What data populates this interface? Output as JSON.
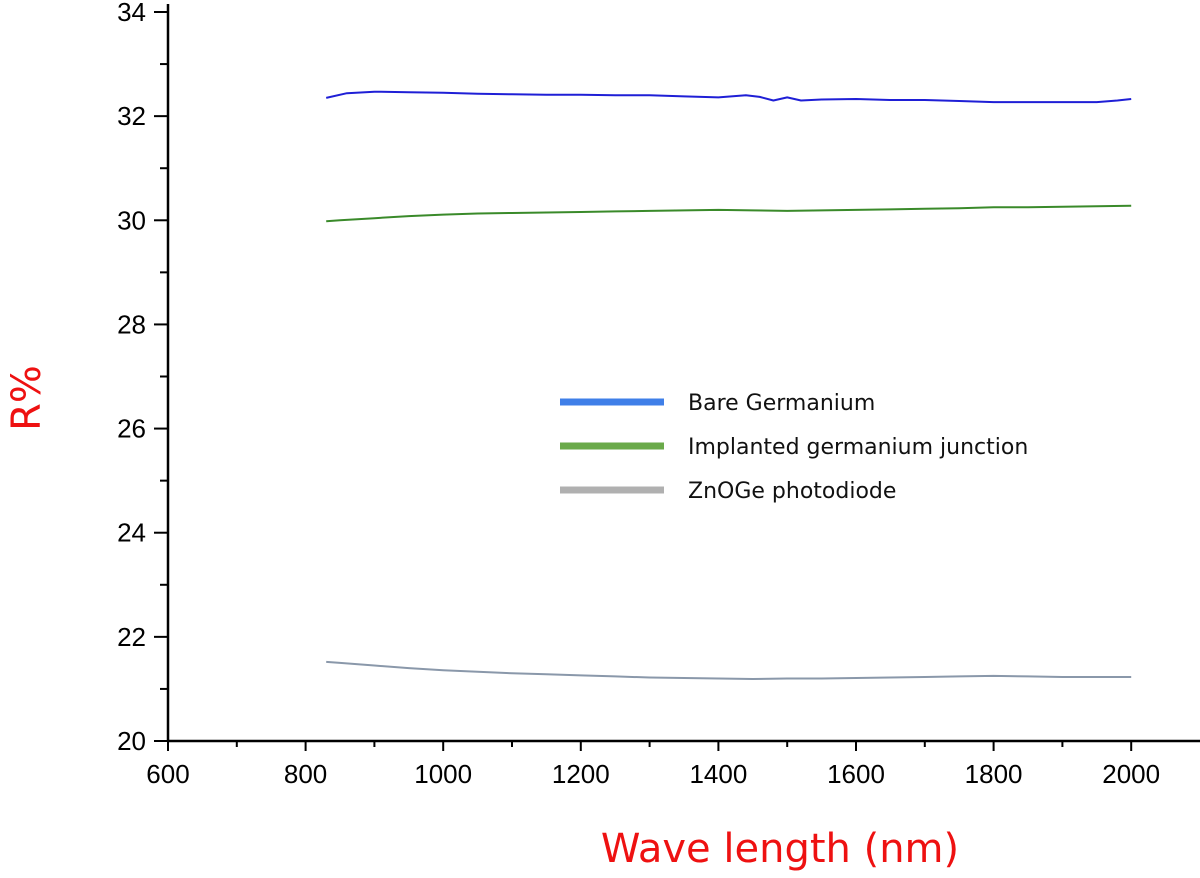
{
  "chart_data": {
    "type": "line",
    "title": "",
    "xlabel": "Wave length (nm)",
    "ylabel": "R%",
    "xlim": [
      600,
      2100
    ],
    "ylim": [
      20,
      34
    ],
    "x_ticks": [
      "600",
      "800",
      "1000",
      "1200",
      "1400",
      "1600",
      "1800",
      "2000"
    ],
    "y_ticks": [
      "20",
      "22",
      "24",
      "26",
      "28",
      "30",
      "32",
      "34"
    ],
    "grid": false,
    "legend_position": "center",
    "series": [
      {
        "name": "Bare Germanium",
        "color": "#1f1fd6",
        "legend_color": "#3f7fe8",
        "x": [
          830,
          860,
          900,
          950,
          1000,
          1050,
          1100,
          1150,
          1200,
          1250,
          1300,
          1350,
          1400,
          1440,
          1460,
          1480,
          1500,
          1520,
          1550,
          1600,
          1650,
          1700,
          1750,
          1800,
          1850,
          1900,
          1950,
          1980,
          2000
        ],
        "y": [
          32.35,
          32.44,
          32.47,
          32.46,
          32.45,
          32.43,
          32.42,
          32.41,
          32.41,
          32.4,
          32.4,
          32.38,
          32.36,
          32.4,
          32.37,
          32.3,
          32.36,
          32.3,
          32.32,
          32.33,
          32.31,
          32.31,
          32.29,
          32.27,
          32.27,
          32.27,
          32.27,
          32.3,
          32.33
        ]
      },
      {
        "name": "Implanted germanium junction",
        "color": "#3a8a2a",
        "legend_color": "#6aaa4a",
        "x": [
          830,
          850,
          900,
          950,
          1000,
          1050,
          1100,
          1150,
          1200,
          1250,
          1300,
          1350,
          1400,
          1450,
          1500,
          1550,
          1600,
          1650,
          1700,
          1750,
          1800,
          1850,
          1900,
          1950,
          2000
        ],
        "y": [
          29.98,
          30.0,
          30.04,
          30.08,
          30.11,
          30.13,
          30.14,
          30.15,
          30.16,
          30.17,
          30.18,
          30.19,
          30.2,
          30.19,
          30.18,
          30.19,
          30.2,
          30.21,
          30.22,
          30.23,
          30.25,
          30.25,
          30.26,
          30.27,
          30.28
        ]
      },
      {
        "name": "ZnOGe photodiode",
        "color": "#8a98aa",
        "legend_color": "#b0b0b0",
        "x": [
          830,
          850,
          900,
          950,
          1000,
          1050,
          1100,
          1150,
          1200,
          1250,
          1300,
          1350,
          1400,
          1450,
          1500,
          1550,
          1600,
          1650,
          1700,
          1750,
          1800,
          1850,
          1900,
          1950,
          2000
        ],
        "y": [
          21.52,
          21.5,
          21.45,
          21.4,
          21.36,
          21.33,
          21.3,
          21.28,
          21.26,
          21.24,
          21.22,
          21.21,
          21.2,
          21.19,
          21.2,
          21.2,
          21.21,
          21.22,
          21.23,
          21.24,
          21.25,
          21.24,
          21.23,
          21.23,
          21.23
        ]
      }
    ]
  }
}
